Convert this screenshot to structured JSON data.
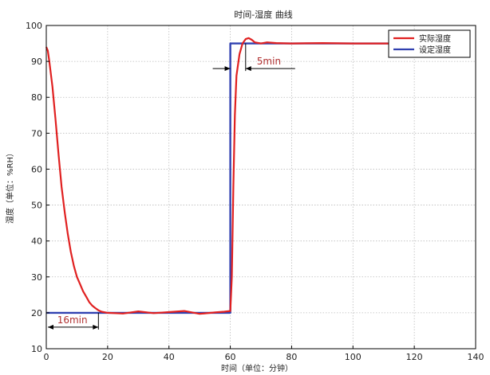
{
  "chart_data": {
    "type": "line",
    "title": "时间-湿度 曲线",
    "xlabel": "时间（单位：分钟）",
    "ylabel": "湿度（单位：%RH）",
    "xlim": [
      0,
      140
    ],
    "ylim": [
      10,
      100
    ],
    "x_ticks": [
      0,
      20,
      40,
      60,
      80,
      100,
      120,
      140
    ],
    "y_ticks": [
      10,
      20,
      30,
      40,
      50,
      60,
      70,
      80,
      90,
      100
    ],
    "grid": true,
    "legend_position": "top-right",
    "series": [
      {
        "name": "实际湿度",
        "color": "#e02020",
        "x": [
          0,
          0.5,
          1,
          2,
          3,
          4,
          5,
          6,
          7,
          8,
          9,
          10,
          11,
          12,
          13,
          14,
          15,
          16,
          17,
          18,
          20,
          25,
          30,
          35,
          40,
          45,
          50,
          55,
          58,
          60,
          60.5,
          61,
          61.5,
          62,
          63,
          64,
          65,
          66,
          67,
          68,
          70,
          72,
          75,
          80,
          90,
          100,
          110,
          120,
          130
        ],
        "y": [
          94,
          93,
          90,
          83,
          74,
          64,
          55,
          48,
          42,
          37,
          33,
          30,
          28,
          26,
          24.5,
          23,
          22,
          21.3,
          20.7,
          20.3,
          20,
          19.8,
          20.4,
          19.9,
          20.2,
          20.5,
          19.7,
          20.1,
          20.3,
          20.5,
          30,
          55,
          75,
          86,
          92,
          95,
          96.2,
          96.5,
          96,
          95.3,
          95,
          95.3,
          95.1,
          95,
          95.1,
          95,
          95,
          95,
          95
        ]
      },
      {
        "name": "设定湿度",
        "color": "#3040b0",
        "x": [
          0,
          60,
          60,
          130
        ],
        "y": [
          20,
          20,
          95,
          95
        ]
      }
    ],
    "annotations": [
      {
        "text": "16min",
        "x_start": 0,
        "x_end": 17,
        "y": 16
      },
      {
        "text": "5min",
        "x_start": 60,
        "x_end": 65,
        "y": 88
      }
    ]
  }
}
